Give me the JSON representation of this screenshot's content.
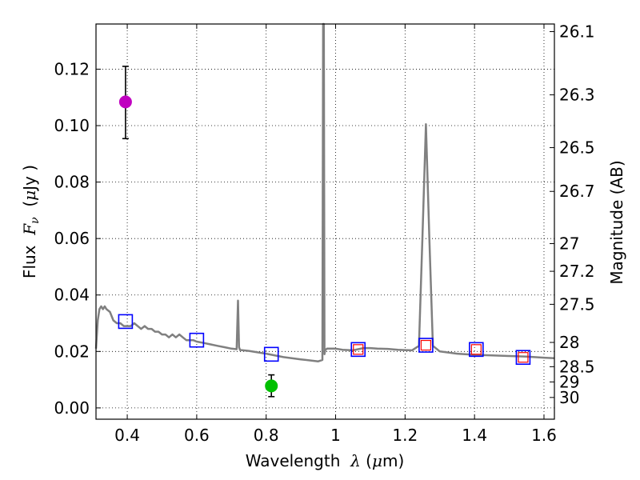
{
  "chart_data": {
    "type": "scatter",
    "xlabel": "Wavelength",
    "xlabel_symbol": "λ",
    "xlabel_unit_open": " (",
    "xlabel_unit_mu": "μ",
    "xlabel_unit_rest": "m)",
    "ylabel": "Flux",
    "ylabel_symbol": "F",
    "ylabel_subscript": "ν",
    "ylabel_unit_open": "  (",
    "ylabel_unit_mu": "μ",
    "ylabel_unit_rest": "Jy )",
    "y2label": "Magnitude (AB)",
    "xlim": [
      0.31,
      1.63
    ],
    "ylim": [
      -0.004,
      0.136
    ],
    "grid": true,
    "xticks": [
      {
        "value": 0.4,
        "label": "0.4"
      },
      {
        "value": 0.6,
        "label": "0.6"
      },
      {
        "value": 0.8,
        "label": "0.8"
      },
      {
        "value": 1.0,
        "label": "1"
      },
      {
        "value": 1.2,
        "label": "1.2"
      },
      {
        "value": 1.4,
        "label": "1.4"
      },
      {
        "value": 1.6,
        "label": "1.6"
      }
    ],
    "yticks": [
      {
        "value": 0.0,
        "label": "0.00"
      },
      {
        "value": 0.02,
        "label": "0.02"
      },
      {
        "value": 0.04,
        "label": "0.04"
      },
      {
        "value": 0.06,
        "label": "0.06"
      },
      {
        "value": 0.08,
        "label": "0.08"
      },
      {
        "value": 0.1,
        "label": "0.10"
      },
      {
        "value": 0.12,
        "label": "0.12"
      }
    ],
    "y2ticks": [
      {
        "label": "26.1",
        "flux": 0.1333
      },
      {
        "label": "26.3",
        "flux": 0.1109
      },
      {
        "label": "26.5",
        "flux": 0.0922
      },
      {
        "label": "26.7",
        "flux": 0.0767
      },
      {
        "label": "27",
        "flux": 0.0582
      },
      {
        "label": "27.2",
        "flux": 0.0484
      },
      {
        "label": "27.5",
        "flux": 0.0367
      },
      {
        "label": "28",
        "flux": 0.0232
      },
      {
        "label": "28.5",
        "flux": 0.0146
      },
      {
        "label": "29",
        "flux": 0.0092
      },
      {
        "label": "30",
        "flux": 0.0037
      }
    ],
    "series": [
      {
        "name": "model spectrum",
        "style": "line",
        "color": "#808080",
        "x": [
          0.31,
          0.315,
          0.32,
          0.325,
          0.33,
          0.335,
          0.34,
          0.35,
          0.36,
          0.37,
          0.38,
          0.39,
          0.4,
          0.41,
          0.42,
          0.43,
          0.44,
          0.45,
          0.46,
          0.47,
          0.48,
          0.49,
          0.5,
          0.51,
          0.52,
          0.53,
          0.54,
          0.55,
          0.56,
          0.57,
          0.58,
          0.59,
          0.6,
          0.62,
          0.64,
          0.66,
          0.68,
          0.7,
          0.715,
          0.719,
          0.722,
          0.725,
          0.728,
          0.75,
          0.8,
          0.85,
          0.9,
          0.95,
          0.962,
          0.964,
          0.966,
          0.968,
          0.97,
          0.975,
          1.0,
          1.02,
          1.05,
          1.08,
          1.1,
          1.12,
          1.15,
          1.18,
          1.2,
          1.22,
          1.24,
          1.25,
          1.26,
          1.27,
          1.28,
          1.3,
          1.35,
          1.4,
          1.45,
          1.5,
          1.55,
          1.6,
          1.63
        ],
        "values": [
          0.021,
          0.031,
          0.035,
          0.036,
          0.035,
          0.036,
          0.035,
          0.034,
          0.031,
          0.03,
          0.03,
          0.029,
          0.029,
          0.029,
          0.03,
          0.029,
          0.028,
          0.029,
          0.028,
          0.028,
          0.027,
          0.027,
          0.026,
          0.026,
          0.025,
          0.026,
          0.025,
          0.026,
          0.025,
          0.024,
          0.024,
          0.024,
          0.0235,
          0.023,
          0.0225,
          0.022,
          0.0215,
          0.021,
          0.0208,
          0.038,
          0.0215,
          0.0205,
          0.0205,
          0.0202,
          0.0192,
          0.018,
          0.0172,
          0.0165,
          0.017,
          0.136,
          0.136,
          0.019,
          0.0205,
          0.021,
          0.021,
          0.0206,
          0.0204,
          0.0212,
          0.0212,
          0.021,
          0.0209,
          0.0206,
          0.0205,
          0.0204,
          0.022,
          0.06,
          0.1005,
          0.06,
          0.022,
          0.02,
          0.0192,
          0.0188,
          0.0186,
          0.0184,
          0.0182,
          0.0178,
          0.0176
        ]
      },
      {
        "name": "model photometry (blue squares)",
        "style": "square",
        "color": "#0000ff",
        "x": [
          0.395,
          0.6,
          0.815,
          1.065,
          1.26,
          1.405,
          1.54
        ],
        "values": [
          0.0306,
          0.024,
          0.019,
          0.0207,
          0.0222,
          0.0207,
          0.0179
        ]
      },
      {
        "name": "photometry (red squares)",
        "style": "square-small",
        "color": "#ff0000",
        "x": [
          1.065,
          1.26,
          1.405,
          1.54
        ],
        "values": [
          0.0207,
          0.0222,
          0.0207,
          0.0179
        ]
      },
      {
        "name": "observed (magenta)",
        "style": "errorbar",
        "color": "#c000c0",
        "x": [
          0.395
        ],
        "values": [
          0.1084
        ],
        "err_low": [
          0.0954
        ],
        "err_high": [
          0.121
        ]
      },
      {
        "name": "observed (green)",
        "style": "errorbar",
        "color": "#00c000",
        "x": [
          0.815
        ],
        "values": [
          0.0078
        ],
        "err_low": [
          0.004
        ],
        "err_high": [
          0.0117
        ]
      }
    ]
  }
}
